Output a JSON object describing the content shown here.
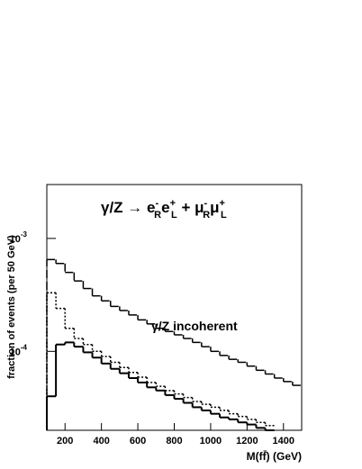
{
  "chart_data": {
    "type": "histogram",
    "title_parts": [
      {
        "text": "γ/Z → e"
      },
      {
        "text": "-",
        "shift": "sup"
      },
      {
        "text": "R",
        "shift": "sub"
      },
      {
        "text": "e"
      },
      {
        "text": "+",
        "shift": "sup"
      },
      {
        "text": "L",
        "shift": "sub"
      },
      {
        "text": " + μ"
      },
      {
        "text": "-",
        "shift": "sup"
      },
      {
        "text": "R",
        "shift": "sub"
      },
      {
        "text": "μ"
      },
      {
        "text": "+",
        "shift": "sup"
      },
      {
        "text": "L",
        "shift": "sub"
      }
    ],
    "annotation": "γ/Z incoherent",
    "x_label": "M(ff̄)  (GeV)",
    "y_label": "fraction of events (per 50 GeV)",
    "bins": [
      100,
      150,
      200,
      250,
      300,
      350,
      400,
      450,
      500,
      550,
      600,
      650,
      700,
      750,
      800,
      850,
      900,
      950,
      1000,
      1050,
      1100,
      1150,
      1200,
      1250,
      1300,
      1350,
      1400,
      1450,
      1500
    ],
    "xlim": [
      100,
      1500
    ],
    "xticks": [
      200,
      400,
      600,
      800,
      1000,
      1200,
      1400
    ],
    "ylim": [
      2e-05,
      0.003
    ],
    "log_y": true,
    "yticks": [
      {
        "value": 0.001,
        "label": "10",
        "exponent": "-3"
      },
      {
        "value": 0.0001,
        "label": "10",
        "exponent": "-4"
      }
    ],
    "series": [
      {
        "color": "#000000",
        "linestyle": "dashed",
        "values": [
          0.00065,
          0.0006,
          0.0005,
          0.00042,
          0.00036,
          0.00031,
          0.00028,
          0.00025,
          0.00023,
          0.00021,
          0.00019,
          0.000175,
          0.00016,
          0.00015,
          0.00014,
          0.00013,
          0.00012,
          0.00011,
          0.0001,
          9.2e-05,
          8.5e-05,
          8e-05,
          7.4e-05,
          6.8e-05,
          6.3e-05,
          5.8e-05,
          5.4e-05,
          5e-05
        ]
      },
      {
        "color": "#000000",
        "linestyle": "dotted",
        "values": [
          0.00033,
          0.00024,
          0.00016,
          0.00013,
          0.000115,
          0.0001,
          9e-05,
          8e-05,
          7.2e-05,
          6.5e-05,
          5.9e-05,
          5.3e-05,
          4.9e-05,
          4.5e-05,
          4.2e-05,
          3.9e-05,
          3.6e-05,
          3.4e-05,
          3.2e-05,
          3e-05,
          2.8e-05,
          2.65e-05,
          2.5e-05,
          2.35e-05,
          2.2e-05,
          null,
          null,
          null
        ]
      },
      {
        "color": "#000000",
        "linestyle": "solid",
        "values": [
          4e-05,
          0.000115,
          0.00012,
          0.00011,
          9.8e-05,
          8.8e-05,
          7.8e-05,
          7e-05,
          6.4e-05,
          5.8e-05,
          5.3e-05,
          4.8e-05,
          4.5e-05,
          4.1e-05,
          3.8e-05,
          3.5e-05,
          3.2e-05,
          3e-05,
          2.8e-05,
          2.6e-05,
          2.5e-05,
          2.35e-05,
          2.25e-05,
          2.1e-05,
          2e-05,
          null,
          null,
          null
        ]
      }
    ]
  }
}
